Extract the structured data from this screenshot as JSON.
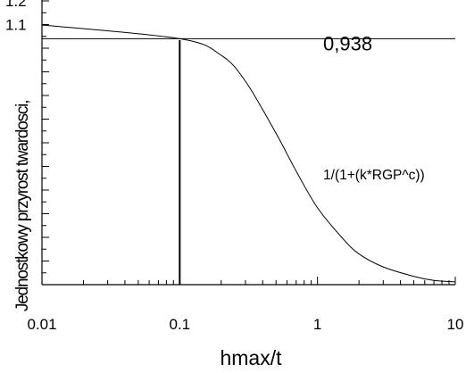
{
  "chart_data": {
    "type": "line",
    "title": "",
    "xlabel": "hmax/t",
    "ylabel": "Jednostkowy przyrost twardosci,",
    "xscale": "log",
    "xlim": [
      0.01,
      10
    ],
    "ylim": [
      0,
      1.2
    ],
    "x_ticks": [
      {
        "value": 0.01,
        "label": "0.01"
      },
      {
        "value": 0.1,
        "label": "0.1"
      },
      {
        "value": 1,
        "label": "1"
      },
      {
        "value": 10,
        "label": "10"
      }
    ],
    "y_ticks": [
      {
        "value": 1.1,
        "label": "1.1"
      },
      {
        "value": 1.2,
        "label": "1.2"
      }
    ],
    "grid": false,
    "series": [
      {
        "name": "",
        "color": "#000000",
        "points": [
          {
            "x": 0.01,
            "y": 1.098
          },
          {
            "x": 0.1,
            "y": 1.04
          },
          {
            "x": 0.2,
            "y": 0.97
          },
          {
            "x": 0.3,
            "y": 0.86
          },
          {
            "x": 0.5,
            "y": 0.64
          },
          {
            "x": 0.7,
            "y": 0.48
          },
          {
            "x": 1.0,
            "y": 0.325
          },
          {
            "x": 1.5,
            "y": 0.2
          },
          {
            "x": 2.0,
            "y": 0.13
          },
          {
            "x": 3.0,
            "y": 0.075
          },
          {
            "x": 5.0,
            "y": 0.035
          },
          {
            "x": 7.0,
            "y": 0.018
          },
          {
            "x": 10.0,
            "y": 0.012
          }
        ]
      }
    ],
    "reference_lines": {
      "horizontal_y": 1.04,
      "vertical_x": 0.1
    },
    "annotations": [
      {
        "text": "0,938",
        "x": 1.1,
        "y": 0.99,
        "style": "big"
      },
      {
        "text": "1/(1+(k*RGP^c))",
        "x": 1.1,
        "y": 0.445,
        "style": "small"
      }
    ]
  }
}
